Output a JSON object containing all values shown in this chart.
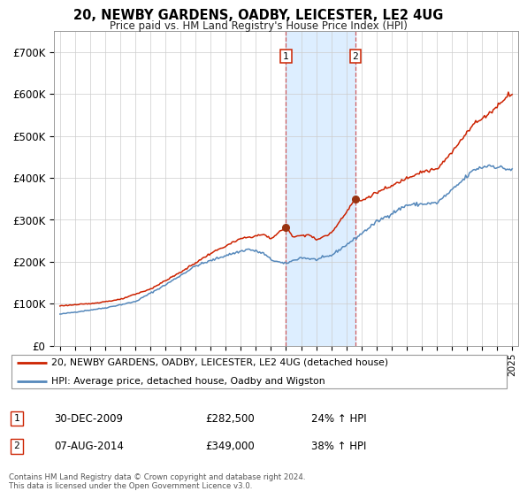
{
  "title": "20, NEWBY GARDENS, OADBY, LEICESTER, LE2 4UG",
  "subtitle": "Price paid vs. HM Land Registry's House Price Index (HPI)",
  "legend_line1": "20, NEWBY GARDENS, OADBY, LEICESTER, LE2 4UG (detached house)",
  "legend_line2": "HPI: Average price, detached house, Oadby and Wigston",
  "sale1_date": "30-DEC-2009",
  "sale1_price": 282500,
  "sale1_label": "1",
  "sale1_pct": "24% ↑ HPI",
  "sale2_date": "07-AUG-2014",
  "sale2_price": 349000,
  "sale2_label": "2",
  "sale2_pct": "38% ↑ HPI",
  "footer": "Contains HM Land Registry data © Crown copyright and database right 2024.\nThis data is licensed under the Open Government Licence v3.0.",
  "hpi_color": "#5588bb",
  "price_color": "#cc2200",
  "background_color": "#ffffff",
  "grid_color": "#cccccc",
  "sale_marker_color": "#993311",
  "vline_color": "#cc4444",
  "span_color": "#ddeeff",
  "ylim": [
    0,
    750000
  ],
  "yticks": [
    0,
    100000,
    200000,
    300000,
    400000,
    500000,
    600000,
    700000
  ],
  "ytick_labels": [
    "£0",
    "£100K",
    "£200K",
    "£300K",
    "£400K",
    "£500K",
    "£600K",
    "£700K"
  ],
  "hpi_anchors_x": [
    1995.0,
    1998.0,
    2000.0,
    2002.0,
    2004.0,
    2006.0,
    2007.5,
    2008.5,
    2009.0,
    2009.9,
    2011.0,
    2012.0,
    2013.0,
    2014.5,
    2016.0,
    2018.0,
    2020.0,
    2021.0,
    2022.5,
    2023.5,
    2024.8
  ],
  "hpi_anchors_y": [
    75000,
    90000,
    105000,
    145000,
    190000,
    215000,
    230000,
    220000,
    205000,
    195000,
    210000,
    205000,
    215000,
    253000,
    295000,
    335000,
    340000,
    370000,
    420000,
    430000,
    420000
  ],
  "price_anchors_x": [
    1995.0,
    1997.0,
    1999.0,
    2001.0,
    2003.0,
    2005.0,
    2007.0,
    2008.5,
    2009.0,
    2009.97,
    2010.5,
    2011.5,
    2012.0,
    2013.0,
    2014.58,
    2015.0,
    2016.0,
    2017.0,
    2018.0,
    2019.0,
    2020.0,
    2021.0,
    2022.0,
    2022.5,
    2023.0,
    2023.5,
    2024.0,
    2024.5,
    2024.8
  ],
  "price_anchors_y": [
    95000,
    100000,
    110000,
    135000,
    175000,
    220000,
    255000,
    265000,
    255000,
    282500,
    260000,
    265000,
    252000,
    268000,
    349000,
    345000,
    365000,
    380000,
    400000,
    415000,
    420000,
    460000,
    510000,
    530000,
    540000,
    555000,
    570000,
    590000,
    600000
  ],
  "sale1_x": 2009.9945,
  "sale2_x": 2014.5973
}
